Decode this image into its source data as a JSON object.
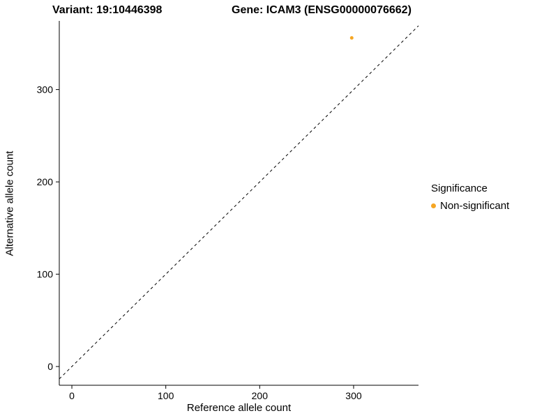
{
  "header": {
    "title_left": "Variant: 19:10446398",
    "title_right": "Gene: ICAM3 (ENSG00000076662)"
  },
  "chart_data": {
    "type": "scatter",
    "title": "Variant: 19:10446398 / Gene: ICAM3 (ENSG00000076662)",
    "xlabel": "Reference allele count",
    "ylabel": "Alternative allele count",
    "xlim": [
      -13.4,
      369.1
    ],
    "ylim": [
      -20.3,
      374.4
    ],
    "xticks": [
      0,
      100,
      200,
      300
    ],
    "yticks": [
      0,
      100,
      200,
      300
    ],
    "grid": false,
    "reference_line": {
      "style": "dashed",
      "slope": 1,
      "intercept": 0,
      "color": "#000000"
    },
    "series": [
      {
        "name": "Non-significant",
        "color": "#F6A623",
        "points": [
          {
            "x": 298,
            "y": 356
          }
        ]
      }
    ],
    "legend": {
      "title": "Significance",
      "position": "right",
      "items": [
        {
          "label": "Non-significant",
          "color": "#F6A623"
        }
      ]
    }
  }
}
